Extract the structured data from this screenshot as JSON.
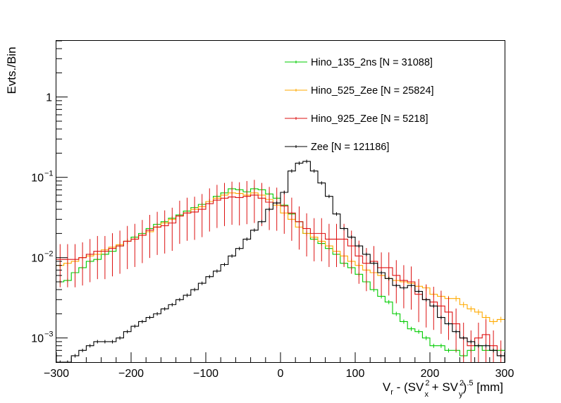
{
  "chart_data": {
    "type": "line",
    "subtype": "step-histogram",
    "title": "",
    "xlabel": {
      "prefix": "V",
      "sub_r": "r",
      "mid": " - (SV",
      "sup1": "2",
      "sub_x": "x",
      "plus": " + SV",
      "sup2": "2",
      "sub_y": "y",
      "close": ")",
      "pow": ".5",
      "unit": " [mm]"
    },
    "ylabel": "Evts./Bin",
    "xlim": [
      -300,
      300
    ],
    "ylim": [
      0.0005,
      5
    ],
    "yscale": "log",
    "x_ticks": [
      "−300",
      "−200",
      "−100",
      "0",
      "100",
      "200",
      "300"
    ],
    "y_ticks": [
      {
        "value": 0.001,
        "base": "10",
        "exp": "−3"
      },
      {
        "value": 0.01,
        "base": "10",
        "exp": "−2"
      },
      {
        "value": 0.1,
        "base": "10",
        "exp": "−1"
      },
      {
        "value": 1,
        "base": "1",
        "exp": ""
      }
    ],
    "bin_width": 10,
    "legend_position": "top-right",
    "series": [
      {
        "name": "Hino_135_2ns [N = 31088]",
        "color": "#00cc00",
        "values": [
          0.005,
          0.0052,
          0.0065,
          0.0075,
          0.009,
          0.0095,
          0.011,
          0.012,
          0.014,
          0.016,
          0.018,
          0.02,
          0.023,
          0.026,
          0.028,
          0.031,
          0.034,
          0.038,
          0.042,
          0.046,
          0.05,
          0.058,
          0.064,
          0.072,
          0.07,
          0.066,
          0.072,
          0.07,
          0.062,
          0.055,
          0.045,
          0.035,
          0.028,
          0.02,
          0.017,
          0.015,
          0.013,
          0.011,
          0.0085,
          0.0075,
          0.0062,
          0.005,
          0.004,
          0.0033,
          0.0028,
          0.002,
          0.0016,
          0.0013,
          0.0012,
          0.001,
          0.0008,
          0.0008,
          0.0007,
          0.0007,
          0.0006,
          0.0007,
          0.0008,
          0.0007,
          0.0007,
          0.0007
        ],
        "err_bins": [],
        "err_frac": 0.06
      },
      {
        "name": "Hino_525_Zee [N = 25824]",
        "color": "#ffaa00",
        "values": [
          0.008,
          0.0085,
          0.009,
          0.01,
          0.0105,
          0.011,
          0.0125,
          0.0135,
          0.0145,
          0.016,
          0.017,
          0.019,
          0.021,
          0.024,
          0.027,
          0.03,
          0.033,
          0.036,
          0.04,
          0.043,
          0.05,
          0.055,
          0.06,
          0.064,
          0.063,
          0.06,
          0.064,
          0.06,
          0.053,
          0.045,
          0.036,
          0.03,
          0.024,
          0.02,
          0.018,
          0.016,
          0.014,
          0.012,
          0.0105,
          0.009,
          0.008,
          0.007,
          0.0065,
          0.006,
          0.0055,
          0.0052,
          0.005,
          0.0048,
          0.0044,
          0.0042,
          0.0035,
          0.0033,
          0.0031,
          0.0031,
          0.0026,
          0.0023,
          0.0021,
          0.0018,
          0.0016,
          0.0017
        ],
        "err_bins": [],
        "err_frac": 0.08
      },
      {
        "name": "Hino_925_Zee [N = 5218]",
        "color": "#dd1111",
        "values": [
          0.0095,
          0.0095,
          0.0095,
          0.01,
          0.011,
          0.012,
          0.012,
          0.013,
          0.014,
          0.016,
          0.017,
          0.019,
          0.022,
          0.024,
          0.025,
          0.027,
          0.033,
          0.036,
          0.037,
          0.04,
          0.047,
          0.052,
          0.055,
          0.057,
          0.056,
          0.058,
          0.06,
          0.055,
          0.049,
          0.048,
          0.044,
          0.036,
          0.028,
          0.023,
          0.02,
          0.02,
          0.017,
          0.017,
          0.017,
          0.014,
          0.0105,
          0.0085,
          0.009,
          0.0075,
          0.0075,
          0.006,
          0.0052,
          0.005,
          0.0035,
          0.003,
          0.0028,
          0.0025,
          0.0021,
          0.0015,
          0.001,
          0.0008,
          0.001,
          0.0011,
          0.0008,
          0.0006
        ],
        "err_bins": [
          0,
          2,
          4,
          6,
          8,
          10,
          12,
          14,
          16,
          18,
          20,
          22,
          24,
          26,
          28,
          30,
          32,
          34,
          36,
          38,
          40,
          42,
          44,
          46,
          48,
          50,
          52,
          54,
          56,
          58
        ],
        "err_frac": 0.55
      },
      {
        "name": "Zee [N = 121186]",
        "color": "#000000",
        "values": [
          0.0005,
          0.0005,
          0.0006,
          0.0007,
          0.0008,
          0.0009,
          0.0009,
          0.0009,
          0.001,
          0.0012,
          0.0014,
          0.0016,
          0.0018,
          0.002,
          0.0023,
          0.0026,
          0.003,
          0.0034,
          0.004,
          0.0048,
          0.0058,
          0.0068,
          0.0082,
          0.0105,
          0.013,
          0.017,
          0.022,
          0.028,
          0.04,
          0.048,
          0.065,
          0.12,
          0.15,
          0.158,
          0.12,
          0.085,
          0.058,
          0.035,
          0.023,
          0.018,
          0.014,
          0.011,
          0.0085,
          0.0065,
          0.0055,
          0.0045,
          0.0042,
          0.0045,
          0.0038,
          0.003,
          0.0025,
          0.0018,
          0.0015,
          0.0012,
          0.001,
          0.0009,
          0.0008,
          0.0008,
          0.0007,
          0.0006
        ],
        "err_bins": [],
        "err_frac": 0.05
      }
    ]
  }
}
